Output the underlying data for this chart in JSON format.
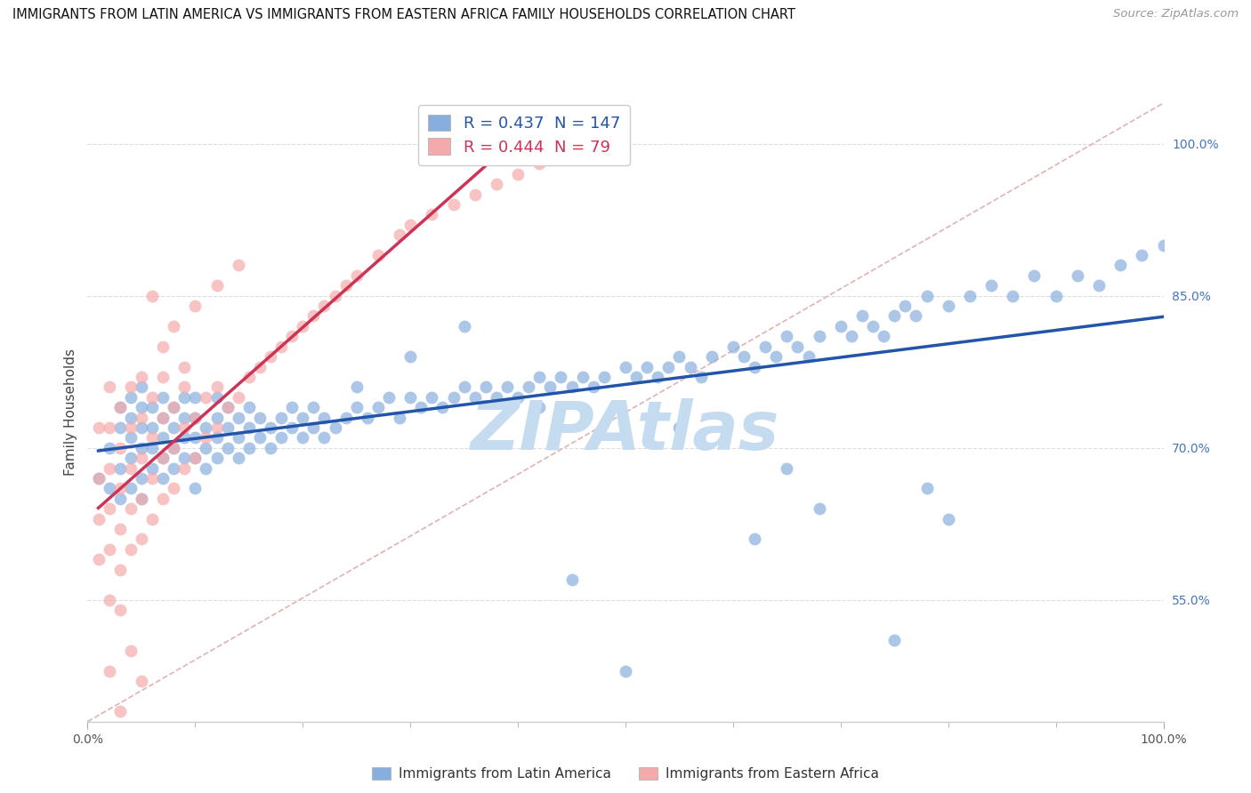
{
  "title": "IMMIGRANTS FROM LATIN AMERICA VS IMMIGRANTS FROM EASTERN AFRICA FAMILY HOUSEHOLDS CORRELATION CHART",
  "source": "Source: ZipAtlas.com",
  "ylabel": "Family Households",
  "right_ytick_labels": [
    "55.0%",
    "70.0%",
    "85.0%",
    "100.0%"
  ],
  "right_ytick_values": [
    0.55,
    0.7,
    0.85,
    1.0
  ],
  "xlim": [
    0.0,
    1.0
  ],
  "ylim": [
    0.43,
    1.04
  ],
  "legend_r_blue": "0.437",
  "legend_n_blue": "147",
  "legend_r_pink": "0.444",
  "legend_n_pink": "79",
  "blue_color": "#88AEDD",
  "pink_color": "#F4AAAA",
  "blue_line_color": "#2255AA",
  "pink_line_color": "#CC3355",
  "diag_color": "#DDAAAA",
  "grid_color": "#DDDDDD",
  "watermark": "ZIPAtlas",
  "watermark_color": "#C5DCF0",
  "legend_label_blue": "Immigrants from Latin America",
  "legend_label_pink": "Immigrants from Eastern Africa",
  "blue_scatter_x": [
    0.01,
    0.02,
    0.02,
    0.03,
    0.03,
    0.03,
    0.03,
    0.04,
    0.04,
    0.04,
    0.04,
    0.04,
    0.05,
    0.05,
    0.05,
    0.05,
    0.05,
    0.05,
    0.06,
    0.06,
    0.06,
    0.06,
    0.07,
    0.07,
    0.07,
    0.07,
    0.07,
    0.08,
    0.08,
    0.08,
    0.08,
    0.09,
    0.09,
    0.09,
    0.09,
    0.1,
    0.1,
    0.1,
    0.1,
    0.1,
    0.11,
    0.11,
    0.11,
    0.12,
    0.12,
    0.12,
    0.12,
    0.13,
    0.13,
    0.13,
    0.14,
    0.14,
    0.14,
    0.15,
    0.15,
    0.15,
    0.16,
    0.16,
    0.17,
    0.17,
    0.18,
    0.18,
    0.19,
    0.19,
    0.2,
    0.2,
    0.21,
    0.21,
    0.22,
    0.22,
    0.23,
    0.24,
    0.25,
    0.25,
    0.26,
    0.27,
    0.28,
    0.29,
    0.3,
    0.31,
    0.32,
    0.33,
    0.34,
    0.35,
    0.36,
    0.37,
    0.38,
    0.39,
    0.4,
    0.41,
    0.42,
    0.43,
    0.44,
    0.45,
    0.46,
    0.47,
    0.48,
    0.5,
    0.51,
    0.52,
    0.53,
    0.54,
    0.55,
    0.56,
    0.57,
    0.58,
    0.6,
    0.61,
    0.62,
    0.63,
    0.64,
    0.65,
    0.66,
    0.67,
    0.68,
    0.7,
    0.71,
    0.72,
    0.73,
    0.74,
    0.75,
    0.76,
    0.77,
    0.78,
    0.8,
    0.82,
    0.84,
    0.86,
    0.88,
    0.9,
    0.92,
    0.94,
    0.96,
    0.98,
    1.0,
    0.42,
    0.55,
    0.68,
    0.8,
    0.35,
    0.5,
    0.65,
    0.78,
    0.3,
    0.45,
    0.62,
    0.75
  ],
  "blue_scatter_y": [
    0.67,
    0.66,
    0.7,
    0.65,
    0.68,
    0.72,
    0.74,
    0.66,
    0.69,
    0.71,
    0.73,
    0.75,
    0.65,
    0.67,
    0.7,
    0.72,
    0.74,
    0.76,
    0.68,
    0.7,
    0.72,
    0.74,
    0.67,
    0.69,
    0.71,
    0.73,
    0.75,
    0.68,
    0.7,
    0.72,
    0.74,
    0.69,
    0.71,
    0.73,
    0.75,
    0.66,
    0.69,
    0.71,
    0.73,
    0.75,
    0.68,
    0.7,
    0.72,
    0.69,
    0.71,
    0.73,
    0.75,
    0.7,
    0.72,
    0.74,
    0.69,
    0.71,
    0.73,
    0.7,
    0.72,
    0.74,
    0.71,
    0.73,
    0.7,
    0.72,
    0.71,
    0.73,
    0.72,
    0.74,
    0.71,
    0.73,
    0.72,
    0.74,
    0.71,
    0.73,
    0.72,
    0.73,
    0.74,
    0.76,
    0.73,
    0.74,
    0.75,
    0.73,
    0.75,
    0.74,
    0.75,
    0.74,
    0.75,
    0.76,
    0.75,
    0.76,
    0.75,
    0.76,
    0.75,
    0.76,
    0.77,
    0.76,
    0.77,
    0.76,
    0.77,
    0.76,
    0.77,
    0.78,
    0.77,
    0.78,
    0.77,
    0.78,
    0.79,
    0.78,
    0.77,
    0.79,
    0.8,
    0.79,
    0.78,
    0.8,
    0.79,
    0.81,
    0.8,
    0.79,
    0.81,
    0.82,
    0.81,
    0.83,
    0.82,
    0.81,
    0.83,
    0.84,
    0.83,
    0.85,
    0.84,
    0.85,
    0.86,
    0.85,
    0.87,
    0.85,
    0.87,
    0.86,
    0.88,
    0.89,
    0.9,
    0.74,
    0.72,
    0.64,
    0.63,
    0.82,
    0.48,
    0.68,
    0.66,
    0.79,
    0.57,
    0.61,
    0.51
  ],
  "pink_scatter_x": [
    0.01,
    0.01,
    0.01,
    0.01,
    0.02,
    0.02,
    0.02,
    0.02,
    0.02,
    0.02,
    0.03,
    0.03,
    0.03,
    0.03,
    0.03,
    0.03,
    0.04,
    0.04,
    0.04,
    0.04,
    0.04,
    0.05,
    0.05,
    0.05,
    0.05,
    0.05,
    0.06,
    0.06,
    0.06,
    0.06,
    0.07,
    0.07,
    0.07,
    0.07,
    0.08,
    0.08,
    0.08,
    0.09,
    0.09,
    0.09,
    0.1,
    0.1,
    0.11,
    0.11,
    0.12,
    0.12,
    0.13,
    0.14,
    0.15,
    0.16,
    0.17,
    0.18,
    0.19,
    0.2,
    0.21,
    0.22,
    0.23,
    0.24,
    0.25,
    0.27,
    0.29,
    0.3,
    0.32,
    0.34,
    0.36,
    0.38,
    0.4,
    0.42,
    0.02,
    0.03,
    0.04,
    0.05,
    0.06,
    0.07,
    0.08,
    0.09,
    0.1,
    0.12,
    0.14
  ],
  "pink_scatter_y": [
    0.59,
    0.63,
    0.67,
    0.72,
    0.55,
    0.6,
    0.64,
    0.68,
    0.72,
    0.76,
    0.54,
    0.58,
    0.62,
    0.66,
    0.7,
    0.74,
    0.6,
    0.64,
    0.68,
    0.72,
    0.76,
    0.61,
    0.65,
    0.69,
    0.73,
    0.77,
    0.63,
    0.67,
    0.71,
    0.75,
    0.65,
    0.69,
    0.73,
    0.77,
    0.66,
    0.7,
    0.74,
    0.68,
    0.72,
    0.76,
    0.69,
    0.73,
    0.71,
    0.75,
    0.72,
    0.76,
    0.74,
    0.75,
    0.77,
    0.78,
    0.79,
    0.8,
    0.81,
    0.82,
    0.83,
    0.84,
    0.85,
    0.86,
    0.87,
    0.89,
    0.91,
    0.92,
    0.93,
    0.94,
    0.95,
    0.96,
    0.97,
    0.98,
    0.48,
    0.44,
    0.5,
    0.47,
    0.85,
    0.8,
    0.82,
    0.78,
    0.84,
    0.86,
    0.88
  ]
}
